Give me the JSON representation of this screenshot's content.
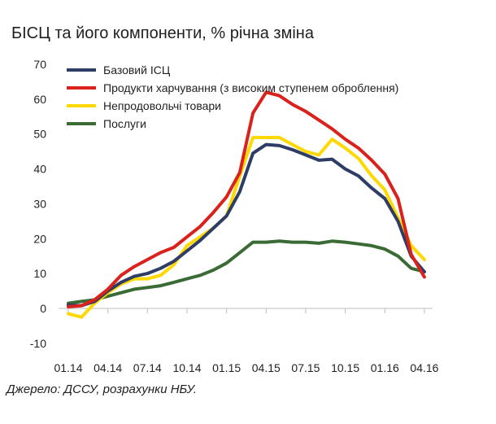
{
  "title": "БІСЦ та його компоненти, % річна зміна",
  "source": "Джерело: ДССУ, розрахунки НБУ.",
  "chart_data": {
    "type": "line",
    "title": "БІСЦ та його компоненти, % річна зміна",
    "xlabel": "",
    "ylabel": "",
    "ylim": [
      -10,
      70
    ],
    "yticks": [
      -10,
      0,
      10,
      20,
      30,
      40,
      50,
      60,
      70
    ],
    "xtick_labels": [
      "01.14",
      "04.14",
      "07.14",
      "10.14",
      "01.15",
      "04.15",
      "07.15",
      "10.15",
      "01.16",
      "04.16"
    ],
    "x": [
      "01.14",
      "02.14",
      "03.14",
      "04.14",
      "05.14",
      "06.14",
      "07.14",
      "08.14",
      "09.14",
      "10.14",
      "11.14",
      "12.14",
      "01.15",
      "02.15",
      "03.15",
      "04.15",
      "05.15",
      "06.15",
      "07.15",
      "08.15",
      "09.15",
      "10.15",
      "11.15",
      "12.15",
      "01.16",
      "02.16",
      "03.16",
      "04.16"
    ],
    "grid": false,
    "legend_position": "top-left",
    "series": [
      {
        "name": "Базовий ІСЦ",
        "color": "#2e3d66",
        "values": [
          1.0,
          0.8,
          2.0,
          5.0,
          7.5,
          9.2,
          10.0,
          11.5,
          13.5,
          16.5,
          19.5,
          23.0,
          26.5,
          33.5,
          44.5,
          47.0,
          46.7,
          45.5,
          44.0,
          42.5,
          42.8,
          40.0,
          38.0,
          34.5,
          31.5,
          25.0,
          15.0,
          10.5
        ]
      },
      {
        "name": "Продукти харчування (з високим ступенем оброблення)",
        "color": "#d9221c",
        "values": [
          0.5,
          0.8,
          2.5,
          5.5,
          9.5,
          12.0,
          14.0,
          16.0,
          17.5,
          20.5,
          23.5,
          27.5,
          32.0,
          39.0,
          56.0,
          62.0,
          61.0,
          58.5,
          56.5,
          54.0,
          51.5,
          48.5,
          46.0,
          42.5,
          38.5,
          31.5,
          15.5,
          9.0
        ]
      },
      {
        "name": "Непродовольчі товари",
        "color": "#ffd800",
        "values": [
          -1.5,
          -2.5,
          1.5,
          4.5,
          7.0,
          8.5,
          8.5,
          9.5,
          12.5,
          18.0,
          20.5,
          23.0,
          26.5,
          38.0,
          49.0,
          49.0,
          49.0,
          47.0,
          45.0,
          44.0,
          48.5,
          46.0,
          43.0,
          38.0,
          34.0,
          26.0,
          18.0,
          14.0
        ]
      },
      {
        "name": "Послуги",
        "color": "#3a6b35",
        "values": [
          1.5,
          2.0,
          2.5,
          3.5,
          4.5,
          5.5,
          6.0,
          6.5,
          7.5,
          8.5,
          9.5,
          11.0,
          13.0,
          16.0,
          19.0,
          19.0,
          19.3,
          19.0,
          19.0,
          18.7,
          19.3,
          19.0,
          18.5,
          18.0,
          17.0,
          15.0,
          11.5,
          10.5
        ]
      }
    ]
  }
}
